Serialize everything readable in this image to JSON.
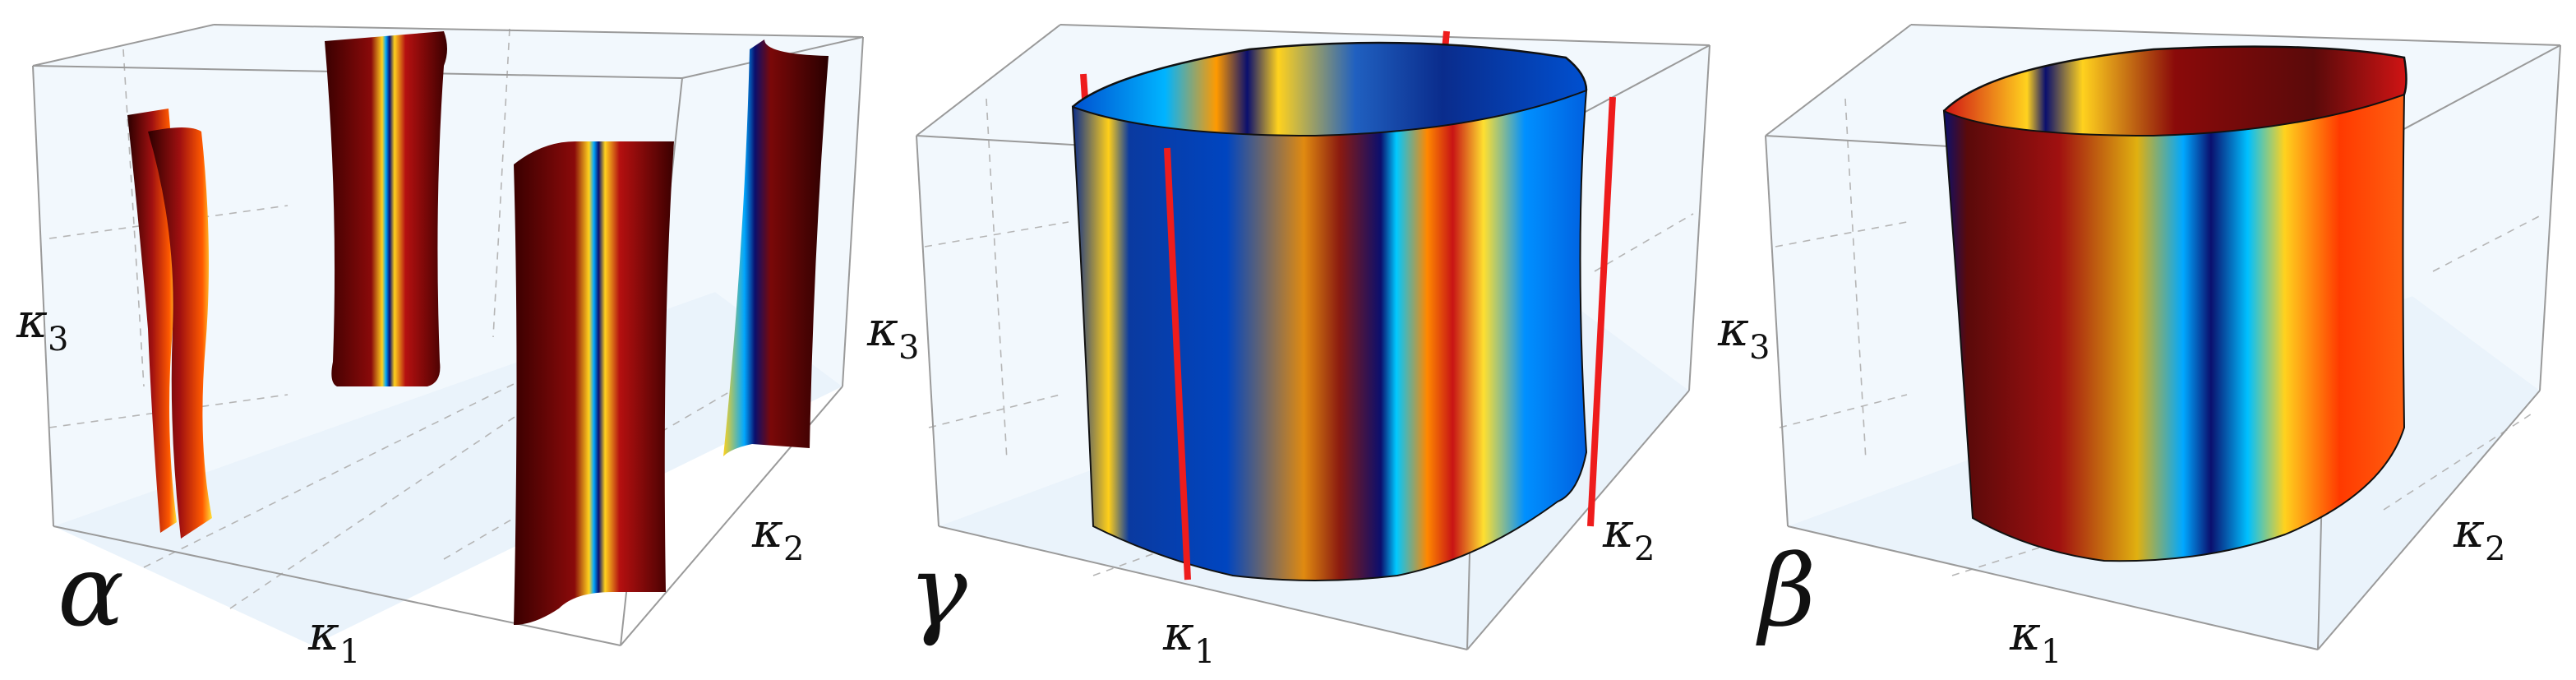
{
  "panels": [
    {
      "id": "alpha",
      "panel_label": "α",
      "axis_x": "κ",
      "axis_x_sub": "1",
      "axis_y": "κ",
      "axis_y_sub": "2",
      "axis_z": "κ",
      "axis_z_sub": "3"
    },
    {
      "id": "gamma",
      "panel_label": "γ",
      "axis_x": "κ",
      "axis_x_sub": "1",
      "axis_y": "κ",
      "axis_y_sub": "2",
      "axis_z": "κ",
      "axis_z_sub": "3"
    },
    {
      "id": "beta",
      "panel_label": "β",
      "axis_x": "κ",
      "axis_x_sub": "1",
      "axis_y": "κ",
      "axis_y_sub": "2",
      "axis_z": "κ",
      "axis_z_sub": "3"
    }
  ],
  "colors": {
    "box_fill": "#eaf3fb",
    "box_edge": "#9a9a9a",
    "grid": "#b5b5b5",
    "colormap": [
      "#0a0f6e",
      "#0050d0",
      "#00b4ff",
      "#f2f020",
      "#ff7a00",
      "#c81414",
      "#3a0000"
    ],
    "line_red": "#ee1c1c"
  }
}
